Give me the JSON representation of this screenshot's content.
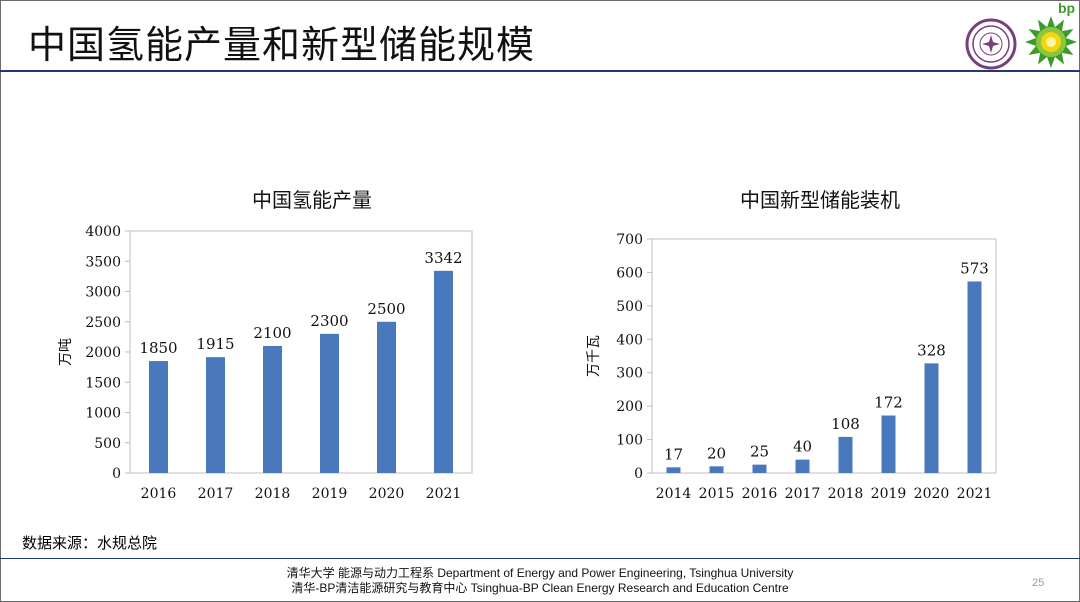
{
  "slide": {
    "title": "中国氢能产量和新型储能规模",
    "source": "数据来源：水规总院",
    "footer_line1": "清华大学 能源与动力工程系 Department of Energy and Power Engineering, Tsinghua University",
    "footer_line2": "清华-BP清洁能源研究与教育中心 Tsinghua-BP Clean Energy Research and Education Centre",
    "page_number": "25",
    "bp_logo_text": "bp"
  },
  "colors": {
    "bar": "#4a78bd",
    "title_rule": "#1f3a6e",
    "bp_green": "#3a9a2a",
    "bp_yellow": "#f5d410"
  },
  "chart_data": [
    {
      "type": "bar",
      "title": "中国氢能产量",
      "ylabel": "万吨",
      "xlabel": "",
      "categories": [
        "2016",
        "2017",
        "2018",
        "2019",
        "2020",
        "2021"
      ],
      "values": [
        1850,
        1915,
        2100,
        2300,
        2500,
        3342
      ],
      "ylim": [
        0,
        4000
      ],
      "yticks": [
        0,
        500,
        1000,
        1500,
        2000,
        2500,
        3000,
        3500,
        4000
      ],
      "grid": false,
      "data_labels": true
    },
    {
      "type": "bar",
      "title": "中国新型储能装机",
      "ylabel": "万千瓦",
      "xlabel": "",
      "categories": [
        "2014",
        "2015",
        "2016",
        "2017",
        "2018",
        "2019",
        "2020",
        "2021"
      ],
      "values": [
        17,
        20,
        25,
        40,
        108,
        172,
        328,
        573
      ],
      "ylim": [
        0,
        700
      ],
      "yticks": [
        0,
        100,
        200,
        300,
        400,
        500,
        600,
        700
      ],
      "grid": false,
      "data_labels": true
    }
  ]
}
